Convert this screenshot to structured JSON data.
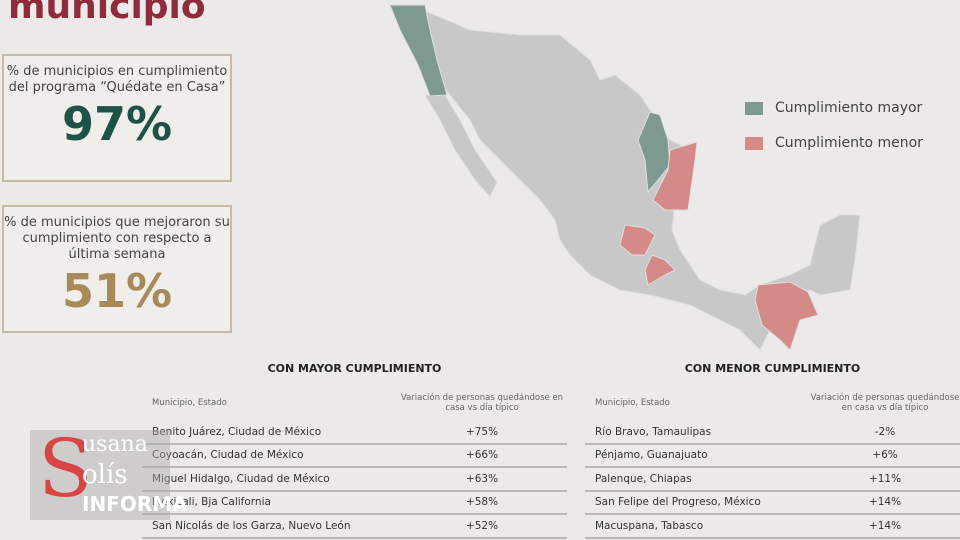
{
  "header": {
    "title": "municipio"
  },
  "stats": [
    {
      "label": "% de municipios en cumplimiento del programa “Quédate en Casa”",
      "value": "97%",
      "color": "#1f5247"
    },
    {
      "label": "% de municipios que mejoraron su cumplimiento con respecto a última semana",
      "value": "51%",
      "color": "#a88a5a"
    }
  ],
  "legend": [
    {
      "label": "Cumplimiento mayor",
      "color": "#7e9a90"
    },
    {
      "label": "Cumplimiento menor",
      "color": "#d48a86"
    }
  ],
  "map": {
    "base_color": "#c8c8c8",
    "states_mayor": [
      "Baja California",
      "Nuevo León"
    ],
    "states_menor": [
      "Tamaulipas",
      "Guanajuato",
      "México",
      "Chiapas",
      "Tabasco"
    ]
  },
  "tables": [
    {
      "title": "CON MAYOR CUMPLIMIENTO",
      "col1": "Municipio, Estado",
      "col2": "Variación de personas quedándose en casa vs día típico",
      "rows": [
        [
          "Benito Juárez, Ciudad de México",
          "+75%"
        ],
        [
          "Coyoacán, Ciudad de México",
          "+66%"
        ],
        [
          "Miguel Hidalgo, Ciudad de México",
          "+63%"
        ],
        [
          "Mexicali, Bja California",
          "+58%"
        ],
        [
          "San Nicolás de los Garza, Nuevo León",
          "+52%"
        ]
      ]
    },
    {
      "title": "CON MENOR CUMPLIMIENTO",
      "col1": "Municipio, Estado",
      "col2": "Variación de personas quedándose en casa vs día típico",
      "rows": [
        [
          "Río Bravo, Tamaulipas",
          "-2%"
        ],
        [
          "Pénjamo, Guanajuato",
          "+6%"
        ],
        [
          "Palenque, Chiapas",
          "+11%"
        ],
        [
          "San Felipe del Progreso, México",
          "+14%"
        ],
        [
          "Macuspana, Tabasco",
          "+14%"
        ]
      ]
    }
  ],
  "watermark": {
    "line1": "usana",
    "line2": "olís",
    "line3": "INFORMA",
    "initial": "S"
  }
}
